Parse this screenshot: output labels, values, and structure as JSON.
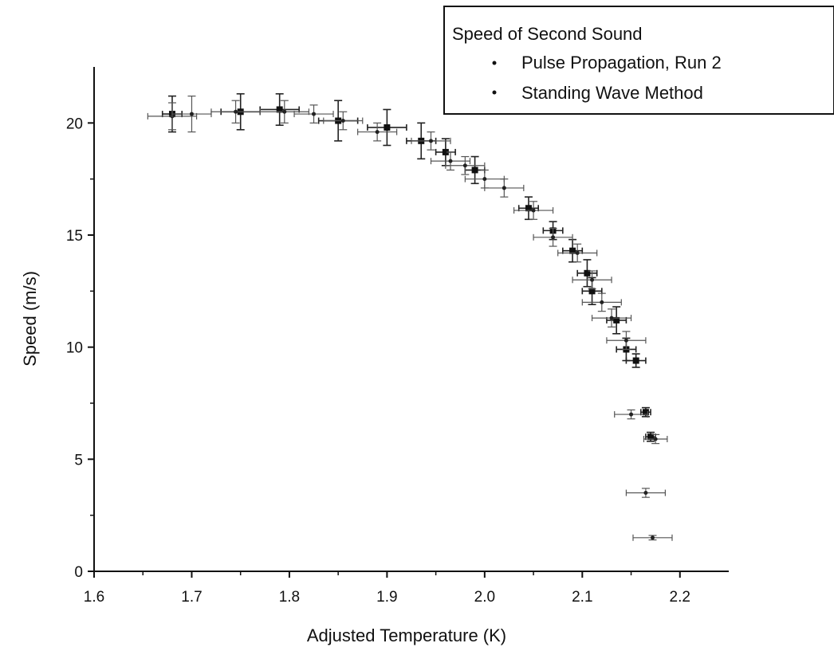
{
  "chart_data": {
    "type": "scatter",
    "xlabel": "Adjusted Temperature (K)",
    "ylabel": "Speed (m/s)",
    "xlim": [
      1.6,
      2.25
    ],
    "ylim": [
      0,
      22.5
    ],
    "x_ticks": [
      "1.6",
      "1.7",
      "1.8",
      "1.9",
      "2.0",
      "2.1",
      "2.2"
    ],
    "y_ticks": [
      "0",
      "5",
      "10",
      "15",
      "20"
    ],
    "grid": false,
    "legend": {
      "title": "Speed of Second Sound",
      "placement": "top-right",
      "entries": [
        "Pulse Propagation, Run 2",
        "Standing Wave Method"
      ]
    },
    "series": [
      {
        "name": "Pulse Propagation, Run 2",
        "points": [
          {
            "x": 1.68,
            "y": 20.4,
            "xerr": 0.01,
            "yerr": 0.8
          },
          {
            "x": 1.75,
            "y": 20.5,
            "xerr": 0.02,
            "yerr": 0.8
          },
          {
            "x": 1.79,
            "y": 20.6,
            "xerr": 0.02,
            "yerr": 0.7
          },
          {
            "x": 1.85,
            "y": 20.1,
            "xerr": 0.02,
            "yerr": 0.9
          },
          {
            "x": 1.9,
            "y": 19.8,
            "xerr": 0.02,
            "yerr": 0.8
          },
          {
            "x": 1.935,
            "y": 19.2,
            "xerr": 0.015,
            "yerr": 0.8
          },
          {
            "x": 1.96,
            "y": 18.7,
            "xerr": 0.01,
            "yerr": 0.6
          },
          {
            "x": 1.99,
            "y": 17.9,
            "xerr": 0.01,
            "yerr": 0.6
          },
          {
            "x": 2.045,
            "y": 16.2,
            "xerr": 0.01,
            "yerr": 0.5
          },
          {
            "x": 2.07,
            "y": 15.2,
            "xerr": 0.01,
            "yerr": 0.4
          },
          {
            "x": 2.09,
            "y": 14.3,
            "xerr": 0.01,
            "yerr": 0.5
          },
          {
            "x": 2.105,
            "y": 13.3,
            "xerr": 0.01,
            "yerr": 0.6
          },
          {
            "x": 2.11,
            "y": 12.5,
            "xerr": 0.01,
            "yerr": 0.6
          },
          {
            "x": 2.135,
            "y": 11.2,
            "xerr": 0.01,
            "yerr": 0.6
          },
          {
            "x": 2.145,
            "y": 9.9,
            "xerr": 0.01,
            "yerr": 0.5
          },
          {
            "x": 2.155,
            "y": 9.4,
            "xerr": 0.01,
            "yerr": 0.3
          },
          {
            "x": 2.165,
            "y": 7.1,
            "xerr": 0.005,
            "yerr": 0.2
          },
          {
            "x": 2.17,
            "y": 6.0,
            "xerr": 0.005,
            "yerr": 0.2
          }
        ]
      },
      {
        "name": "Standing Wave Method",
        "points": [
          {
            "x": 1.68,
            "y": 20.3,
            "xerr": 0.025,
            "yerr": 0.6
          },
          {
            "x": 1.7,
            "y": 20.4,
            "xerr": 0.02,
            "yerr": 0.8
          },
          {
            "x": 1.745,
            "y": 20.5,
            "xerr": 0.025,
            "yerr": 0.5
          },
          {
            "x": 1.795,
            "y": 20.5,
            "xerr": 0.025,
            "yerr": 0.5
          },
          {
            "x": 1.825,
            "y": 20.4,
            "xerr": 0.02,
            "yerr": 0.4
          },
          {
            "x": 1.855,
            "y": 20.1,
            "xerr": 0.02,
            "yerr": 0.4
          },
          {
            "x": 1.89,
            "y": 19.6,
            "xerr": 0.02,
            "yerr": 0.4
          },
          {
            "x": 1.945,
            "y": 19.2,
            "xerr": 0.02,
            "yerr": 0.4
          },
          {
            "x": 1.965,
            "y": 18.3,
            "xerr": 0.02,
            "yerr": 0.4
          },
          {
            "x": 1.98,
            "y": 18.1,
            "xerr": 0.02,
            "yerr": 0.4
          },
          {
            "x": 2.0,
            "y": 17.5,
            "xerr": 0.02,
            "yerr": 0.4
          },
          {
            "x": 2.02,
            "y": 17.1,
            "xerr": 0.02,
            "yerr": 0.4
          },
          {
            "x": 2.05,
            "y": 16.1,
            "xerr": 0.02,
            "yerr": 0.4
          },
          {
            "x": 2.07,
            "y": 14.9,
            "xerr": 0.02,
            "yerr": 0.4
          },
          {
            "x": 2.095,
            "y": 14.2,
            "xerr": 0.02,
            "yerr": 0.4
          },
          {
            "x": 2.11,
            "y": 13.0,
            "xerr": 0.02,
            "yerr": 0.4
          },
          {
            "x": 2.12,
            "y": 12.0,
            "xerr": 0.02,
            "yerr": 0.4
          },
          {
            "x": 2.13,
            "y": 11.3,
            "xerr": 0.02,
            "yerr": 0.4
          },
          {
            "x": 2.145,
            "y": 10.3,
            "xerr": 0.02,
            "yerr": 0.4
          },
          {
            "x": 2.15,
            "y": 7.0,
            "xerr": 0.017,
            "yerr": 0.2
          },
          {
            "x": 2.175,
            "y": 5.9,
            "xerr": 0.012,
            "yerr": 0.2
          },
          {
            "x": 2.165,
            "y": 3.5,
            "xerr": 0.02,
            "yerr": 0.2
          },
          {
            "x": 2.172,
            "y": 1.5,
            "xerr": 0.02,
            "yerr": 0.1
          }
        ]
      }
    ]
  }
}
